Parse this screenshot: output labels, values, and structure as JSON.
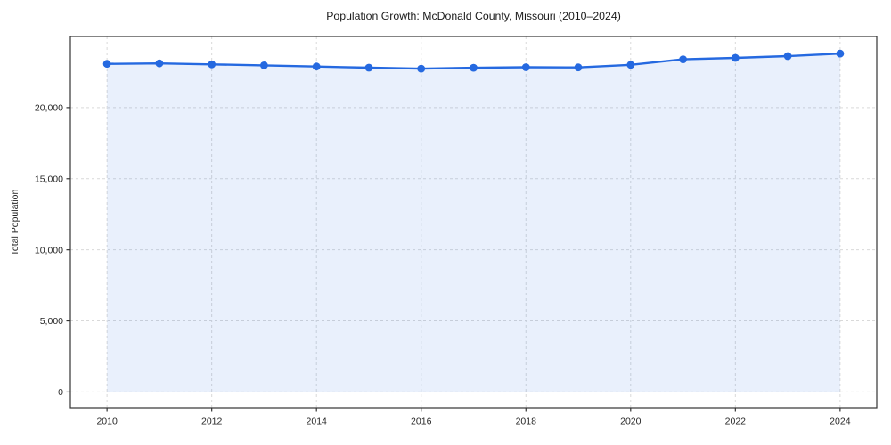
{
  "figure": {
    "title": "Population Growth: McDonald County, Missouri (2010–2024)",
    "ylabel": "Total Population"
  },
  "chart_data": {
    "type": "line",
    "title": "Population Growth: McDonald County, Missouri (2010–2024)",
    "xlabel": "",
    "ylabel": "Total Population",
    "series": [
      {
        "name": "Total Population",
        "x": [
          2010,
          2011,
          2012,
          2013,
          2014,
          2015,
          2016,
          2017,
          2018,
          2019,
          2020,
          2021,
          2022,
          2023,
          2024
        ],
        "values": [
          23080,
          23110,
          23040,
          22970,
          22890,
          22810,
          22740,
          22800,
          22840,
          22830,
          23010,
          23400,
          23500,
          23620,
          23800
        ]
      }
    ],
    "x_ticks": [
      2010,
      2012,
      2014,
      2016,
      2018,
      2020,
      2022,
      2024
    ],
    "x_tick_labels": [
      "2010",
      "2012",
      "2014",
      "2016",
      "2018",
      "2020",
      "2022",
      "2024"
    ],
    "y_ticks": [
      0,
      5000,
      10000,
      15000,
      20000
    ],
    "y_tick_labels": [
      "0",
      "5,000",
      "10,000",
      "15,000",
      "20,000"
    ],
    "xlim": [
      2009.3,
      2024.7
    ],
    "ylim": [
      -1100,
      25000
    ],
    "grid": true,
    "legend": "none",
    "line_color": "#2569e0",
    "marker": "circle",
    "fill_under": true,
    "fill_color": "#2569e0",
    "fill_opacity": 0.1,
    "fill_baseline": 0,
    "gridline_color": "#d9d9d9",
    "spine_color": "#333333",
    "tick_color": "#333333"
  }
}
